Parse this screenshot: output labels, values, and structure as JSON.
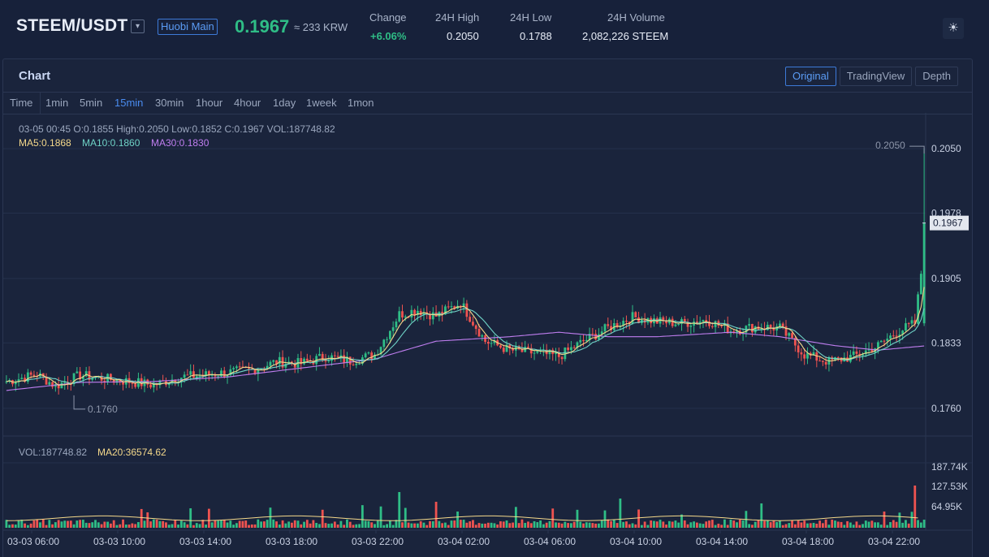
{
  "header": {
    "pair": "STEEM/USDT",
    "pair_dropdown_icon": "chevron-down-icon",
    "exchange": "Huobi Main",
    "price": "0.1967",
    "price_krw": "≈ 233 KRW",
    "change_label": "Change",
    "change_value": "+6.06%",
    "high_label": "24H High",
    "high_value": "0.2050",
    "low_label": "24H Low",
    "low_value": "0.1788",
    "volume_label": "24H Volume",
    "volume_value": "2,082,226 STEEM",
    "theme_icon": "sun-icon",
    "colors": {
      "up": "#2fbd86",
      "down": "#ef5350",
      "accent": "#3d7ad8"
    }
  },
  "panel": {
    "title": "Chart",
    "views": [
      {
        "label": "Original",
        "active": true
      },
      {
        "label": "TradingView",
        "active": false
      },
      {
        "label": "Depth",
        "active": false
      }
    ],
    "intervals": [
      {
        "label": "Time",
        "active": false
      },
      {
        "label": "1min",
        "active": false
      },
      {
        "label": "5min",
        "active": false
      },
      {
        "label": "15min",
        "active": true
      },
      {
        "label": "30min",
        "active": false
      },
      {
        "label": "1hour",
        "active": false
      },
      {
        "label": "4hour",
        "active": false
      },
      {
        "label": "1day",
        "active": false
      },
      {
        "label": "1week",
        "active": false
      },
      {
        "label": "1mon",
        "active": false
      }
    ]
  },
  "legend": {
    "ohlc": "03-05 00:45   O:0.1855  High:0.2050  Low:0.1852  C:0.1967  VOL:187748.82",
    "ma5": "MA5:0.1868",
    "ma10": "MA10:0.1860",
    "ma30": "MA30:0.1830",
    "vol": "VOL:187748.82",
    "ma20": "MA20:36574.62",
    "colors": {
      "ma5": "#f5d98b",
      "ma10": "#6fd3c7",
      "ma30": "#c07ef0"
    }
  },
  "chart_data": {
    "type": "candlestick",
    "interval": "15min",
    "price_axis_ticks": [
      "0.2050",
      "0.1978",
      "0.1905",
      "0.1833",
      "0.1760"
    ],
    "price_ylim": [
      0.173,
      0.209
    ],
    "volume_axis_ticks": [
      "187.74K",
      "127.53K",
      "64.95K"
    ],
    "volume_ylim": [
      0,
      200000
    ],
    "time_ticks": [
      "03-03 06:00",
      "03-03 10:00",
      "03-03 14:00",
      "03-03 18:00",
      "03-03 22:00",
      "03-04 02:00",
      "03-04 06:00",
      "03-04 10:00",
      "03-04 14:00",
      "03-04 18:00",
      "03-04 22:00"
    ],
    "current_price_label": "0.1967",
    "high_marker": "0.2050",
    "low_marker": "0.1760",
    "close_path": [
      [
        0,
        0.179
      ],
      [
        10,
        0.1798
      ],
      [
        16,
        0.1785
      ],
      [
        24,
        0.1797
      ],
      [
        32,
        0.1793
      ],
      [
        40,
        0.179
      ],
      [
        48,
        0.1786
      ],
      [
        56,
        0.1795
      ],
      [
        64,
        0.1797
      ],
      [
        72,
        0.18
      ],
      [
        80,
        0.1803
      ],
      [
        88,
        0.1812
      ],
      [
        96,
        0.181
      ],
      [
        104,
        0.1818
      ],
      [
        112,
        0.1813
      ],
      [
        120,
        0.182
      ],
      [
        128,
        0.1865
      ],
      [
        134,
        0.187
      ],
      [
        140,
        0.1863
      ],
      [
        148,
        0.1878
      ],
      [
        156,
        0.1835
      ],
      [
        164,
        0.1825
      ],
      [
        172,
        0.1822
      ],
      [
        180,
        0.1818
      ],
      [
        188,
        0.1835
      ],
      [
        196,
        0.185
      ],
      [
        204,
        0.1862
      ],
      [
        212,
        0.1857
      ],
      [
        220,
        0.1855
      ],
      [
        228,
        0.1859
      ],
      [
        236,
        0.1847
      ],
      [
        244,
        0.1851
      ],
      [
        252,
        0.185
      ],
      [
        260,
        0.182
      ],
      [
        268,
        0.1812
      ],
      [
        276,
        0.1818
      ],
      [
        284,
        0.183
      ],
      [
        290,
        0.1845
      ],
      [
        296,
        0.1855
      ],
      [
        300,
        0.1967
      ]
    ],
    "ma30_path": [
      [
        0,
        0.178
      ],
      [
        24,
        0.1789
      ],
      [
        48,
        0.179
      ],
      [
        72,
        0.1795
      ],
      [
        96,
        0.1805
      ],
      [
        120,
        0.1815
      ],
      [
        140,
        0.1835
      ],
      [
        164,
        0.184
      ],
      [
        180,
        0.1845
      ],
      [
        196,
        0.184
      ],
      [
        212,
        0.184
      ],
      [
        236,
        0.1845
      ],
      [
        252,
        0.184
      ],
      [
        270,
        0.183
      ],
      [
        284,
        0.1825
      ],
      [
        300,
        0.183
      ]
    ],
    "volume_peaks": [
      [
        128,
        110000
      ],
      [
        140,
        80000
      ],
      [
        200,
        90000
      ],
      [
        246,
        75000
      ],
      [
        286,
        50000
      ],
      [
        296,
        130000
      ],
      [
        300,
        187748.82
      ]
    ],
    "volume_ma20": 36574.62
  }
}
